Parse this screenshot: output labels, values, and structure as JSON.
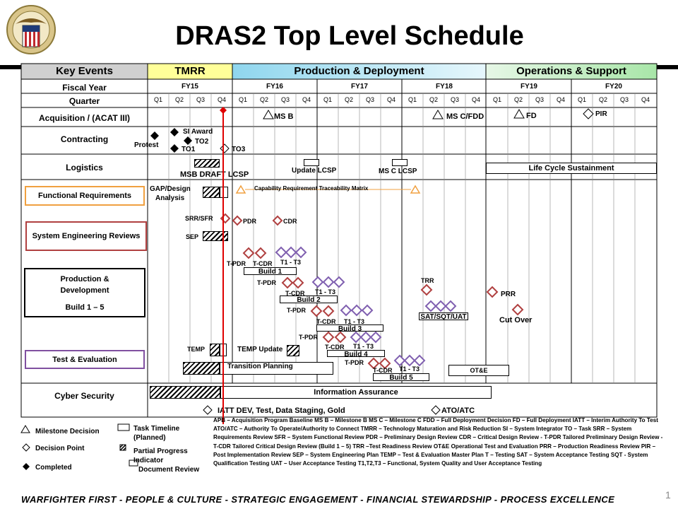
{
  "title": "DRAS2 Top Level Schedule",
  "phases": {
    "key_events": "Key Events",
    "tmrr": "TMRR",
    "production": "Production & Deployment",
    "operations": "Operations & Support"
  },
  "rows": {
    "fiscal_year": "Fiscal Year",
    "quarter": "Quarter",
    "acquisition": "Acquisition / (ACAT III)",
    "contracting": "Contracting",
    "logistics": "Logistics",
    "functional_req": "Functional Requirements",
    "ser": "System Engineering Reviews",
    "prod_dev_1": "Production &",
    "prod_dev_2": "Development",
    "prod_dev_3": "Build 1 – 5",
    "test_eval": "Test & Evaluation",
    "cyber": "Cyber Security"
  },
  "fiscal_years": [
    "FY15",
    "FY16",
    "FY17",
    "FY18",
    "FY19",
    "FY20"
  ],
  "quarters": [
    "Q1",
    "Q2",
    "Q3",
    "Q4"
  ],
  "acquisition": {
    "ms_b": "MS B",
    "ms_c": "MS C/FDD",
    "fd": "FD",
    "pir": "PIR"
  },
  "contracting": {
    "protest": "Protest",
    "si_award": "SI Award",
    "to2": "TO2",
    "to1": "TO1",
    "to3": "TO3"
  },
  "logistics": {
    "msb_draft": "MSB DRAFT  LCSP",
    "update_lcsp": "Update LCSP",
    "msc_lcsp": "MS C LCSP",
    "life_cycle": "Life Cycle Sustainment"
  },
  "functional": {
    "gap": "GAP/Design",
    "analysis": "Analysis",
    "crtm": "Capability Requirement Traceability Matrix"
  },
  "ser": {
    "srr": "SRR/SFR",
    "pdr": "PDR",
    "cdr": "CDR",
    "sep": "SEP"
  },
  "builds": {
    "tpdr": "T-PDR",
    "tcdr": "T-CDR",
    "t13": "T1 - T3",
    "t13b": "T1 - T3",
    "build1": "Build 1",
    "build2": "Build 2",
    "build3": "Build 3",
    "build4": "Build 4",
    "build5": "Build 5",
    "trr": "TRR",
    "prr": "PRR",
    "sat": "SAT/SQT/UAT",
    "cutover": "Cut Over"
  },
  "test": {
    "temp": "TEMP",
    "temp_update": "TEMP Update",
    "transition": "Transition Planning",
    "ote": "OT&E"
  },
  "cyber": {
    "ia": "Information Assurance",
    "iatt": "IATT  DEV,  Test, Data Staging, Gold",
    "ato": "ATO/ATC"
  },
  "legend": {
    "milestone": "Milestone Decision",
    "decision": "Decision Point",
    "completed": "Completed",
    "task1": "Task Timeline",
    "task2": "(Planned)",
    "partial1": "Partial Progress",
    "partial2": "Indicator",
    "docreview": "Document Review",
    "acronyms": "APB – Acquisition  Program Baseline  MS B – Milestone B    MS C – Milestone  C     FDD – Full Deployment  Decision     FD – Full Deployment  IATT – Interim Authority  To Test     ATO/ATC – Authority To Operate/Authority to Connect     TMRR – Technology Maturation and Risk Reduction  SI – System Integrator TO – Task  SRR – System Requirements  Review    SFR – System Functional  Review PDR – Preliminary  Design Review     CDR – Critical  Design Review  -  T-PDR Tailored Preliminary Design Review  - T-CDR Tailored Critical  Design  Review (Build  1 – 5)  TRR –Test Readiness Review   OT&E Operational  Test and Evaluation  PRR – Production  Readiness Review  PIR – Post  Implementation  Review SEP – System Engineering Plan  TEMP – Test & Evaluation Master Plan  T – Testing  SAT – System Acceptance  Testing    SQT - System Qualification  Testing  UAT – User Acceptance Testing  T1,T2,T3 – Functional,  System Quality and User Acceptance  Testing"
  },
  "footer": "WARFIGHTER FIRST - PEOPLE & CULTURE - STRATEGIC ENGAGEMENT - FINANCIAL STEWARDSHIP - PROCESS EXCELLENCE",
  "page_number": "1",
  "colors": {
    "tmrr_bg": "#FFFF99",
    "production_bg": "#B3E5F5",
    "operations_bg": "#C8F0C8",
    "key_bg": "#D0D0D0",
    "review_red": "#B04040",
    "build_purple": "#8060B0",
    "functional_orange": "#F0A040",
    "ser_red": "#B04040",
    "test_purple": "#8050A0",
    "today_line": "#E00000"
  }
}
